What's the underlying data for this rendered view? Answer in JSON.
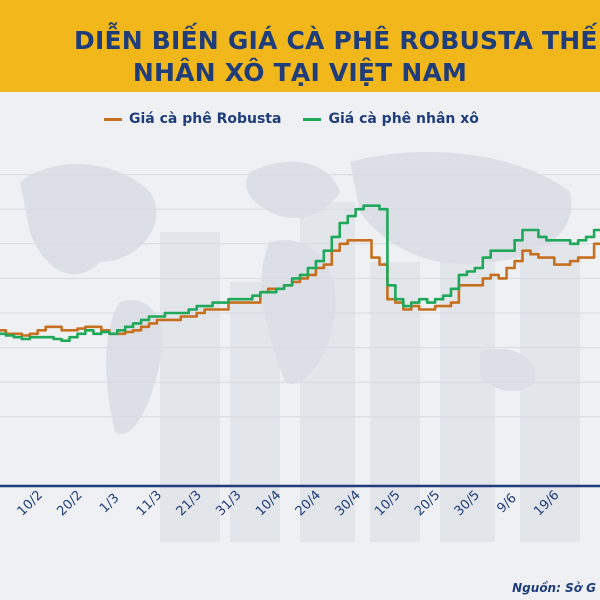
{
  "title": {
    "line1": "DIỄN BIẾN GIÁ CÀ PHÊ ROBUSTA THẾ GIỚ",
    "line2": "NHÂN XÔ TẠI VIỆT NAM"
  },
  "source": "Nguồn: Sở G",
  "colors": {
    "header": "#f2b71b",
    "title_text": "#1f3d7a",
    "robusta": "#c6701f",
    "nhan_xo": "#1fa85a"
  },
  "chart_data": {
    "type": "line",
    "title": "DIỄN BIẾN GIÁ CÀ PHÊ ROBUSTA THẾ GIỚ NHÂN XÔ TẠI VIỆT NAM",
    "legend_position": "top",
    "grid": true,
    "tick_labels": [
      "10/2",
      "20/2",
      "1/3",
      "11/3",
      "21/3",
      "31/3",
      "10/4",
      "20/4",
      "30/4",
      "10/5",
      "20/5",
      "30/5",
      "9/6",
      "19/6"
    ],
    "tick_index": [
      5,
      10,
      15,
      20,
      25,
      30,
      35,
      40,
      45,
      50,
      55,
      60,
      65,
      70
    ],
    "ylim": [
      0,
      100
    ],
    "series": [
      {
        "name": "Giá cà phê Robusta",
        "color": "#c6701f",
        "values": [
          45,
          44,
          44,
          43.5,
          44,
          45,
          46,
          46,
          45,
          45,
          45.5,
          46,
          46,
          45,
          44,
          44,
          44.5,
          45,
          46,
          47,
          48,
          48,
          48,
          49,
          49,
          50,
          51,
          51,
          51,
          53,
          53,
          53,
          53,
          56,
          57,
          57,
          58,
          59,
          60,
          61,
          63,
          64,
          68,
          70,
          71,
          71,
          71,
          66,
          64,
          54,
          53,
          51,
          52,
          51,
          51,
          52,
          52,
          53,
          58,
          58,
          58,
          60,
          61,
          60,
          63,
          65,
          68,
          67,
          66,
          66,
          64,
          64,
          65,
          66,
          66,
          70,
          69
        ]
      },
      {
        "name": "Giá cà phê nhân xô",
        "color": "#1fa85a",
        "values": [
          44,
          43.5,
          43,
          42.5,
          43,
          43,
          43,
          42.5,
          42,
          43,
          44,
          45,
          44,
          44.5,
          44,
          45,
          46,
          47,
          48,
          49,
          49,
          50,
          50,
          50,
          51,
          52,
          52,
          53,
          53,
          54,
          54,
          54,
          55,
          56,
          56,
          57,
          58,
          60,
          61,
          63,
          65,
          68,
          72,
          76,
          78,
          80,
          81,
          81,
          80,
          58,
          54,
          52,
          53,
          54,
          53,
          54,
          55,
          57,
          61,
          62,
          63,
          66,
          68,
          68,
          68,
          71,
          74,
          74,
          72,
          71,
          71,
          71,
          70,
          71,
          72,
          74,
          73
        ]
      }
    ]
  }
}
